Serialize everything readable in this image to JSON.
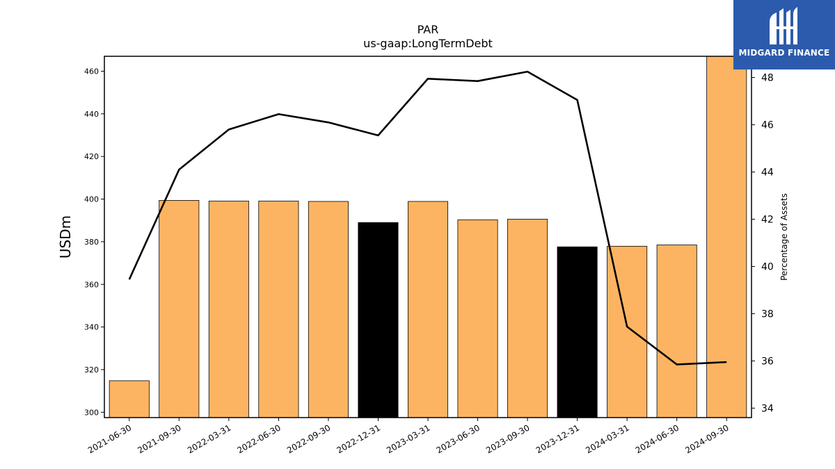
{
  "chart_data": {
    "type": "bar",
    "title": "PAR",
    "subtitle": "us-gaap:LongTermDebt",
    "ylabel": "USDm",
    "y2label": "Percentage of Assets",
    "categories": [
      "2021-06-30",
      "2021-09-30",
      "2022-03-31",
      "2022-06-30",
      "2022-09-30",
      "2022-12-31",
      "2023-03-31",
      "2023-06-30",
      "2023-09-30",
      "2023-12-31",
      "2024-03-31",
      "2024-06-30",
      "2024-09-30"
    ],
    "series": [
      {
        "type": "bar",
        "values": [
          314.8,
          399.4,
          399.1,
          399.1,
          398.9,
          389.0,
          398.9,
          390.3,
          390.6,
          377.6,
          377.9,
          378.5,
          467.0
        ],
        "colors": [
          "#fdb462",
          "#fdb462",
          "#fdb462",
          "#fdb462",
          "#fdb462",
          "#000000",
          "#fdb462",
          "#fdb462",
          "#fdb462",
          "#000000",
          "#fdb462",
          "#fdb462",
          "#fdb462"
        ]
      },
      {
        "type": "line",
        "axis": "right",
        "values": [
          39.45,
          44.1,
          45.8,
          46.45,
          46.1,
          45.55,
          47.95,
          47.85,
          48.25,
          47.05,
          37.45,
          35.85,
          35.95
        ],
        "color": "#000000"
      }
    ],
    "ylim": [
      297.5,
      467.0
    ],
    "y2lim": [
      33.6,
      48.9
    ],
    "yticks": [
      300,
      320,
      340,
      360,
      380,
      400,
      420,
      440,
      460
    ],
    "y2ticks": [
      34,
      36,
      38,
      40,
      42,
      44,
      46,
      48
    ],
    "grid": false,
    "legend": "none"
  },
  "logo": {
    "text": "MIDGARD FINANCE",
    "background": "#2c5bad"
  }
}
